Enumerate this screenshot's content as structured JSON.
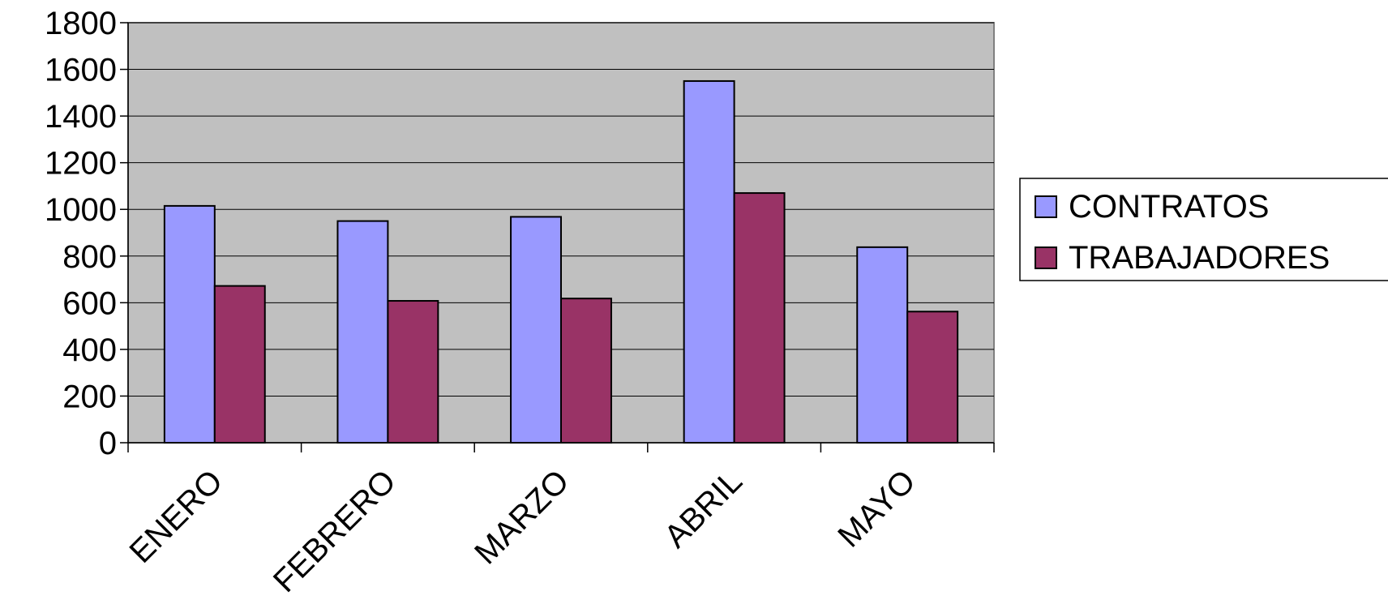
{
  "chart_data": {
    "type": "bar",
    "title": "",
    "xlabel": "",
    "ylabel": "",
    "categories": [
      "ENERO",
      "FEBRERO",
      "MARZO",
      "ABRIL",
      "MAYO"
    ],
    "series": [
      {
        "name": "CONTRATOS",
        "color": "#9999ff",
        "values": [
          1015,
          950,
          968,
          1550,
          838
        ]
      },
      {
        "name": "TRABAJADORES",
        "color": "#993366",
        "values": [
          672,
          608,
          618,
          1070,
          562
        ]
      }
    ],
    "ylim": [
      0,
      1800
    ],
    "yticks": [
      "0",
      "200",
      "400",
      "600",
      "800",
      "1000",
      "1200",
      "1400",
      "1600",
      "1800"
    ],
    "grid": true,
    "plot_background": "#c0c0c0",
    "legend_position": "right"
  }
}
